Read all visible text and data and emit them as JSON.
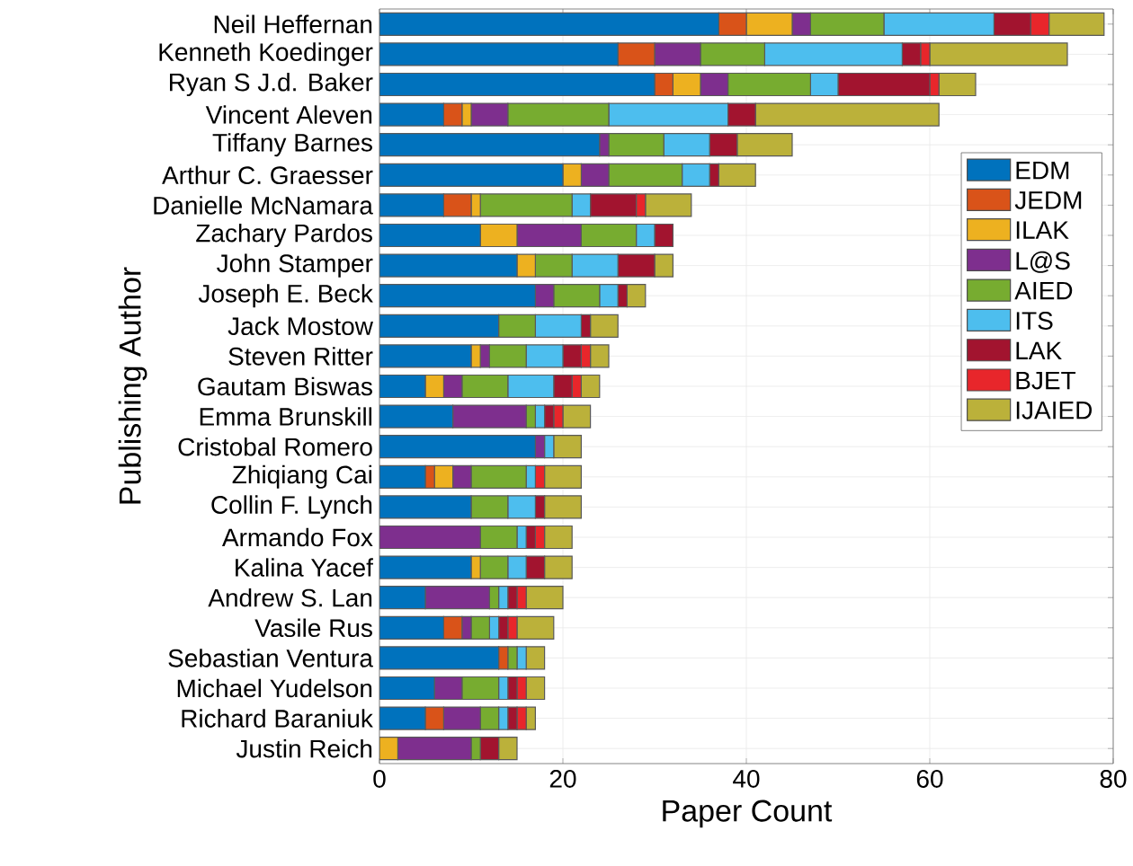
{
  "chart_data": {
    "type": "bar",
    "orientation": "horizontal",
    "stacked": true,
    "xlabel": "Paper Count",
    "ylabel": "Publishing Author",
    "categories": [
      "Neil Heffernan",
      "Kenneth Koedinger",
      "Ryan S J.d. Baker",
      "Vincent Aleven",
      "Tiffany Barnes",
      "Arthur C. Graesser",
      "Danielle McNamara",
      "Zachary Pardos",
      "John Stamper",
      "Joseph E. Beck",
      "Jack Mostow",
      "Steven Ritter",
      "Gautam Biswas",
      "Emma Brunskill",
      "Cristobal Romero",
      "Zhiqiang Cai",
      "Collin F. Lynch",
      "Armando Fox",
      "Kalina Yacef",
      "Andrew S. Lan",
      "Vasile Rus",
      "Sebastian Ventura",
      "Michael Yudelson",
      "Richard Baraniuk",
      "Justin Reich"
    ],
    "series": [
      {
        "name": "EDM",
        "color": "#0072bd",
        "values": [
          37,
          26,
          30,
          7,
          24,
          20,
          7,
          11,
          15,
          17,
          13,
          10,
          5,
          8,
          17,
          5,
          10,
          0,
          10,
          5,
          7,
          13,
          6,
          5,
          0
        ]
      },
      {
        "name": "JEDM",
        "color": "#d95319",
        "values": [
          3,
          4,
          2,
          2,
          0,
          0,
          3,
          0,
          0,
          0,
          0,
          0,
          0,
          0,
          0,
          1,
          0,
          0,
          0,
          0,
          2,
          1,
          0,
          2,
          0
        ]
      },
      {
        "name": "ILAK",
        "color": "#edb120",
        "values": [
          5,
          0,
          3,
          1,
          0,
          2,
          1,
          4,
          2,
          0,
          0,
          1,
          2,
          0,
          0,
          2,
          0,
          0,
          1,
          0,
          0,
          0,
          0,
          0,
          2
        ]
      },
      {
        "name": "L@S",
        "color": "#7e2f8e",
        "values": [
          2,
          5,
          3,
          4,
          1,
          3,
          0,
          7,
          0,
          2,
          0,
          1,
          2,
          8,
          1,
          2,
          0,
          11,
          0,
          7,
          1,
          0,
          3,
          4,
          8
        ]
      },
      {
        "name": "AIED",
        "color": "#77ac30",
        "values": [
          8,
          7,
          9,
          11,
          6,
          8,
          10,
          6,
          4,
          5,
          4,
          4,
          5,
          1,
          0,
          6,
          4,
          4,
          3,
          1,
          2,
          1,
          4,
          2,
          1
        ]
      },
      {
        "name": "ITS",
        "color": "#4dbeee",
        "values": [
          12,
          15,
          3,
          13,
          5,
          3,
          2,
          2,
          5,
          2,
          5,
          4,
          5,
          1,
          1,
          1,
          3,
          1,
          2,
          1,
          1,
          1,
          1,
          1,
          0
        ]
      },
      {
        "name": "LAK",
        "color": "#a2142f",
        "values": [
          4,
          2,
          10,
          3,
          3,
          1,
          5,
          2,
          4,
          1,
          1,
          2,
          2,
          1,
          0,
          0,
          1,
          1,
          2,
          1,
          1,
          0,
          1,
          1,
          2
        ]
      },
      {
        "name": "BJET",
        "color": "#e8262b",
        "values": [
          2,
          1,
          1,
          0,
          0,
          0,
          1,
          0,
          0,
          0,
          0,
          1,
          1,
          1,
          0,
          1,
          0,
          1,
          0,
          1,
          1,
          0,
          1,
          1,
          0
        ]
      },
      {
        "name": "IJAIED",
        "color": "#bbb13a",
        "values": [
          6,
          15,
          4,
          20,
          6,
          4,
          5,
          0,
          2,
          2,
          3,
          2,
          2,
          3,
          3,
          4,
          4,
          3,
          3,
          4,
          4,
          2,
          2,
          1,
          2
        ]
      }
    ],
    "xlim": [
      0,
      80
    ],
    "xticks": [
      0,
      20,
      40,
      60,
      80
    ],
    "grid": true,
    "legend": "right"
  }
}
